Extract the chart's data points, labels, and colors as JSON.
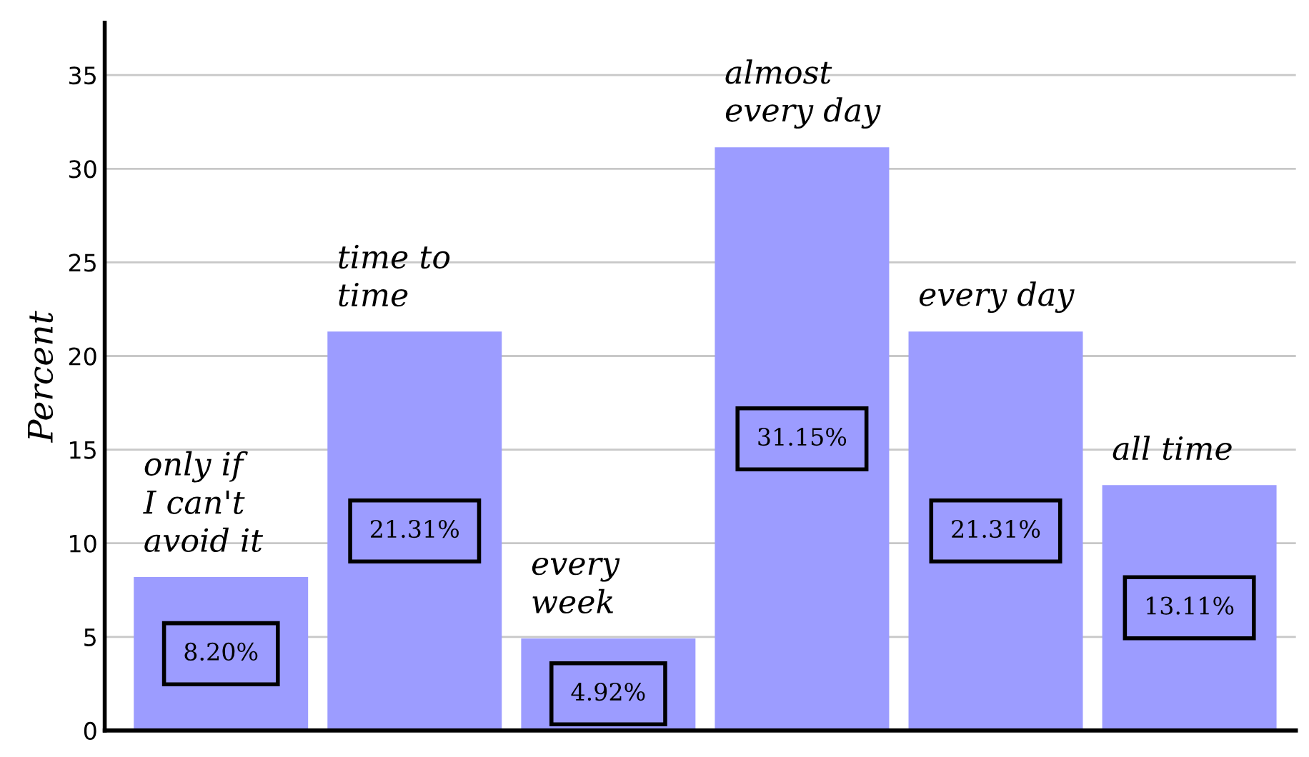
{
  "chart_data": {
    "type": "bar",
    "ylabel": "Percent",
    "categories": [
      "only if\nI can't\navoid it",
      "time to\ntime",
      "every\nweek",
      "almost\nevery day",
      "every day",
      "all time"
    ],
    "values": [
      8.2,
      21.31,
      4.92,
      31.15,
      21.31,
      13.11
    ],
    "value_labels": [
      "8.20%",
      "21.31%",
      "4.92%",
      "31.15%",
      "21.31%",
      "13.11%"
    ],
    "color": "#9c9cff",
    "ylim": [
      0,
      37.8
    ],
    "yticks": [
      0,
      5,
      10,
      15,
      20,
      25,
      30,
      35
    ],
    "grid": "y",
    "legend": false
  }
}
